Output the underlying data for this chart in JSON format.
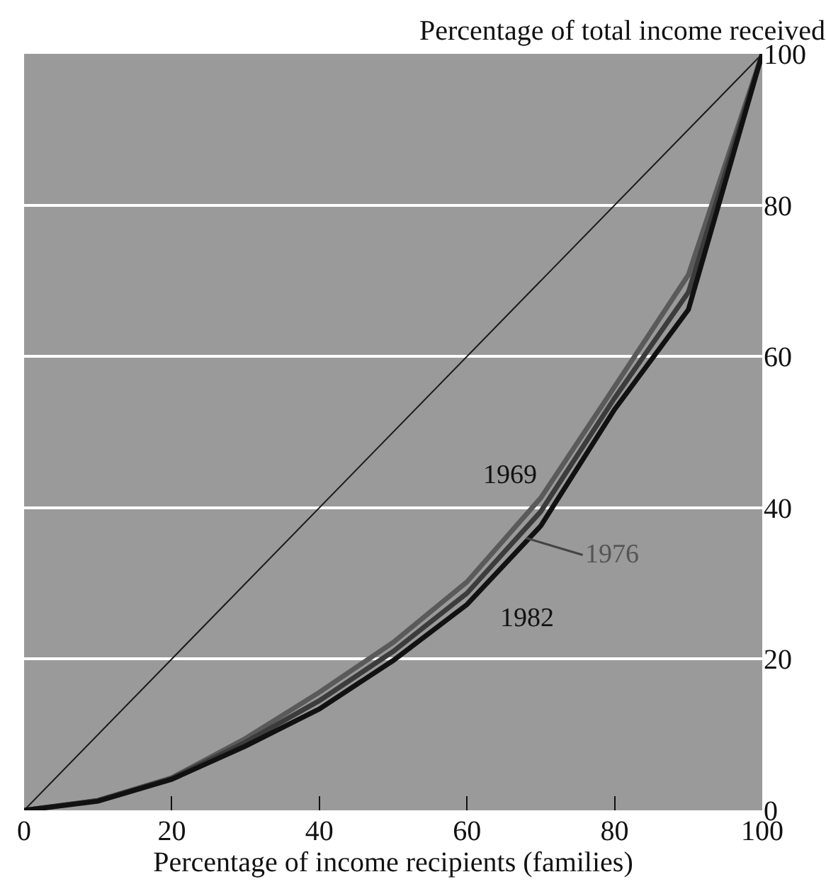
{
  "chart_data": {
    "type": "line",
    "xlabel": "Percentage of income recipients (families)",
    "ylabel": "Percentage of total income received",
    "x": [
      0,
      10,
      20,
      30,
      40,
      50,
      60,
      70,
      80,
      90,
      100
    ],
    "series": [
      {
        "x": [
          0,
          100
        ],
        "values": [
          0,
          100
        ],
        "color": "#1a1a1a"
      },
      {
        "values": [
          0,
          1.3,
          4.3,
          9.5,
          15.6,
          22.2,
          30.2,
          41.3,
          56,
          70.8,
          100
        ],
        "color": "#5a5a5a"
      },
      {
        "values": [
          0,
          1.3,
          4.2,
          9,
          14.5,
          21,
          28.7,
          39.5,
          54.5,
          68.5,
          100
        ],
        "color": "#3c3c3c"
      },
      {
        "values": [
          0,
          1.2,
          4.1,
          8.5,
          13.4,
          19.8,
          27.2,
          37.6,
          53,
          66.2,
          100
        ],
        "color": "#111111"
      }
    ],
    "annotations": [
      {
        "text": "1969",
        "x": 70,
        "y": 41.3
      },
      {
        "text": "1976",
        "x": 68,
        "y": 36
      },
      {
        "text": "1982",
        "x": 60,
        "y": 27.2
      }
    ],
    "xlim": [
      0,
      100
    ],
    "ylim": [
      0,
      100
    ],
    "xticks": [
      0,
      20,
      40,
      60,
      80,
      100
    ],
    "yticks": [
      0,
      20,
      40,
      60,
      80,
      100
    ],
    "grid": "y",
    "marker": "none",
    "line_style": "solid"
  }
}
